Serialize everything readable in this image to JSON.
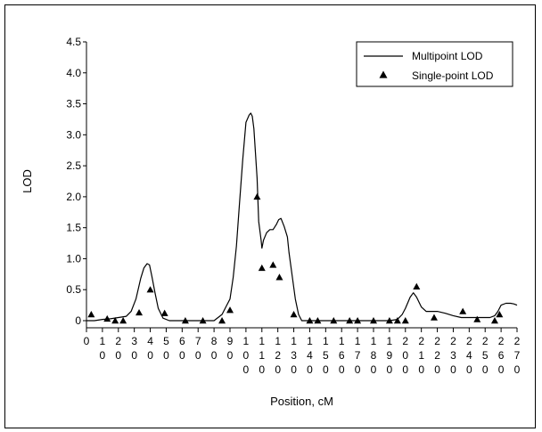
{
  "chart_data": {
    "type": "line",
    "xlabel": "Position, cM",
    "ylabel": "LOD",
    "xlim": [
      0,
      270
    ],
    "ylim": [
      0,
      4.5
    ],
    "yticks": [
      "0",
      "0.5",
      "1.0",
      "1.5",
      "2.0",
      "2.5",
      "3.0",
      "3.5",
      "4.0",
      "4.5"
    ],
    "xticks": [
      {
        "v": 0,
        "label": "0"
      },
      {
        "v": 10,
        "label": "1 0"
      },
      {
        "v": 20,
        "label": "2 0"
      },
      {
        "v": 30,
        "label": "3 0"
      },
      {
        "v": 40,
        "label": "4 0"
      },
      {
        "v": 50,
        "label": "5 0"
      },
      {
        "v": 60,
        "label": "6 0"
      },
      {
        "v": 70,
        "label": "7 0"
      },
      {
        "v": 80,
        "label": "8 0"
      },
      {
        "v": 90,
        "label": "9 0"
      },
      {
        "v": 100,
        "label": "1 0 0"
      },
      {
        "v": 110,
        "label": "1 1 0"
      },
      {
        "v": 120,
        "label": "1 2 0"
      },
      {
        "v": 130,
        "label": "1 3 0"
      },
      {
        "v": 140,
        "label": "1 4 0"
      },
      {
        "v": 150,
        "label": "1 5 0"
      },
      {
        "v": 160,
        "label": "1 6 0"
      },
      {
        "v": 170,
        "label": "1 7 0"
      },
      {
        "v": 180,
        "label": "1 8 0"
      },
      {
        "v": 190,
        "label": "1 9 0"
      },
      {
        "v": 200,
        "label": "2 0 0"
      },
      {
        "v": 210,
        "label": "2 1 0"
      },
      {
        "v": 220,
        "label": "2 2 0"
      },
      {
        "v": 230,
        "label": "2 3 0"
      },
      {
        "v": 240,
        "label": "2 4 0"
      },
      {
        "v": 250,
        "label": "2 5 0"
      },
      {
        "v": 260,
        "label": "2 6 0"
      },
      {
        "v": 270,
        "label": "2 7 0"
      }
    ],
    "legend": {
      "placement": "top-right",
      "entries": [
        "Multipoint LOD",
        "Single-point LOD"
      ]
    },
    "series": [
      {
        "name": "Multipoint LOD",
        "kind": "line",
        "x": [
          0,
          5,
          10,
          15,
          20,
          25,
          28,
          31,
          34,
          36,
          38,
          39.5,
          41,
          43,
          45,
          48,
          52,
          60,
          70,
          80,
          85,
          88,
          90,
          92,
          94,
          96,
          98,
          100,
          102,
          103,
          104,
          105,
          107,
          108,
          109.5,
          110,
          111,
          113,
          115,
          117,
          119,
          120.5,
          122,
          124,
          126,
          127,
          129,
          131,
          133,
          135,
          140,
          150,
          160,
          170,
          180,
          185,
          190,
          195,
          198,
          200,
          203,
          205,
          207,
          210,
          213,
          215,
          220,
          225,
          230,
          235,
          240,
          245,
          250,
          253,
          256,
          258,
          260,
          263,
          266,
          268,
          270
        ],
        "y": [
          0,
          0,
          0.02,
          0.03,
          0.05,
          0.07,
          0.15,
          0.35,
          0.68,
          0.85,
          0.92,
          0.9,
          0.72,
          0.45,
          0.2,
          0.04,
          0,
          0,
          0,
          0,
          0.1,
          0.25,
          0.35,
          0.7,
          1.2,
          1.9,
          2.6,
          3.2,
          3.32,
          3.35,
          3.3,
          3.1,
          2.3,
          1.6,
          1.3,
          1.17,
          1.3,
          1.42,
          1.47,
          1.47,
          1.55,
          1.63,
          1.65,
          1.52,
          1.35,
          1.1,
          0.72,
          0.35,
          0.1,
          0,
          0,
          0,
          0,
          0,
          0,
          0,
          0,
          0.02,
          0.1,
          0.2,
          0.38,
          0.45,
          0.38,
          0.22,
          0.15,
          0.15,
          0.15,
          0.12,
          0.08,
          0.05,
          0.05,
          0.05,
          0.05,
          0.05,
          0.08,
          0.15,
          0.25,
          0.28,
          0.28,
          0.27,
          0.25
        ]
      },
      {
        "name": "Single-point LOD",
        "kind": "triangles",
        "x": [
          3,
          13,
          18,
          23,
          33,
          40,
          49,
          62,
          73,
          85,
          90,
          107,
          110,
          117,
          121,
          130,
          140,
          145,
          155,
          165,
          170,
          180,
          190,
          195,
          200,
          207,
          218,
          236,
          245,
          256,
          259
        ],
        "y": [
          0.1,
          0.03,
          0,
          0,
          0.13,
          0.5,
          0.12,
          0,
          0,
          0,
          0.17,
          2.0,
          0.85,
          0.9,
          0.7,
          0.1,
          0,
          0,
          0,
          0,
          0,
          0,
          0,
          0,
          0,
          0.55,
          0.05,
          0.15,
          0.02,
          0,
          0.1
        ]
      }
    ]
  }
}
